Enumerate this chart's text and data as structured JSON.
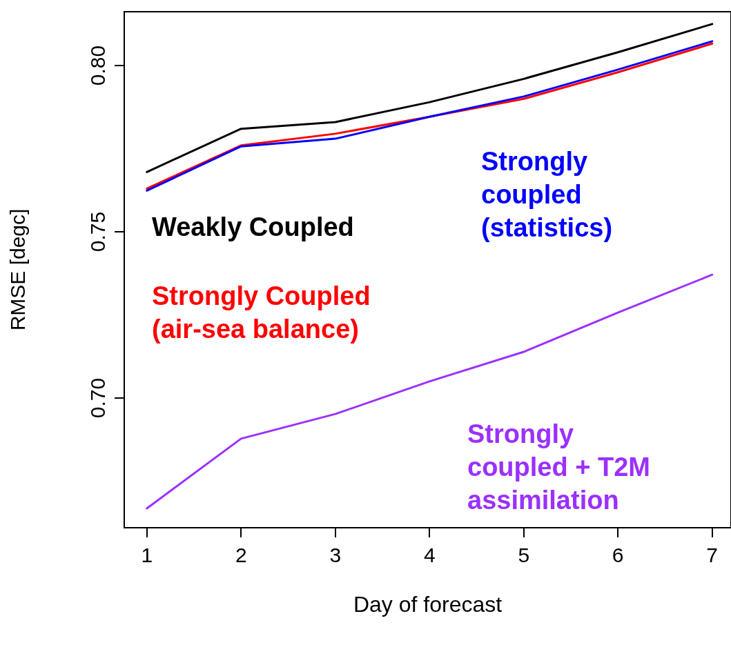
{
  "chart_data": {
    "type": "line",
    "xlabel": "Day of forecast",
    "ylabel": "RMSE [degc]",
    "x": [
      1,
      2,
      3,
      4,
      5,
      6,
      7
    ],
    "series": [
      {
        "name": "Weakly Coupled",
        "color": "#000000",
        "values": [
          0.768,
          0.781,
          0.783,
          0.789,
          0.796,
          0.804,
          0.8125
        ]
      },
      {
        "name": "Strongly Coupled (air-sea balance)",
        "color": "#ff0000",
        "values": [
          0.763,
          0.776,
          0.7795,
          0.7846,
          0.79,
          0.798,
          0.8066
        ]
      },
      {
        "name": "Strongly coupled (statistics)",
        "color": "#0000ff",
        "values": [
          0.7624,
          0.7757,
          0.778,
          0.7846,
          0.7907,
          0.7988,
          0.8073
        ]
      },
      {
        "name": "Strongly coupled + T2M assimilation",
        "color": "#9b30ff",
        "values": [
          0.6668,
          0.6878,
          0.6952,
          0.705,
          0.7139,
          0.7257,
          0.7371
        ]
      }
    ],
    "xlim": [
      0.76,
      7.2
    ],
    "xticks": [
      1,
      2,
      3,
      4,
      5,
      6,
      7
    ],
    "ylim": [
      0.661,
      0.8162
    ],
    "yticks": [
      {
        "value": 0.7,
        "label": "0.70"
      },
      {
        "value": 0.75,
        "label": "0.75"
      },
      {
        "value": 0.8,
        "label": "0.80"
      }
    ],
    "grid": false,
    "legend": false,
    "marker": "none",
    "line_style": "solid"
  }
}
